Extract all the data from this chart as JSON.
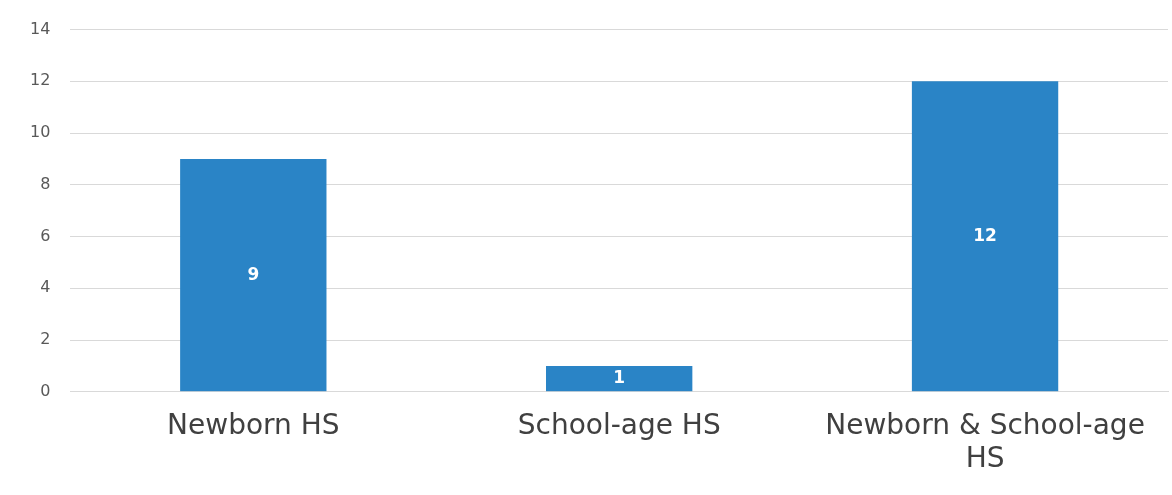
{
  "chart_data": {
    "type": "bar",
    "categories": [
      "Newborn HS",
      "School-age HS",
      "Newborn & School-age HS"
    ],
    "values": [
      9,
      1,
      12
    ],
    "color": "#2a84c6",
    "ylim": [
      0,
      14
    ],
    "yticks": [
      0,
      2,
      4,
      6,
      8,
      10,
      12,
      14
    ],
    "grid": "y",
    "data_labels": true,
    "legend": false
  }
}
